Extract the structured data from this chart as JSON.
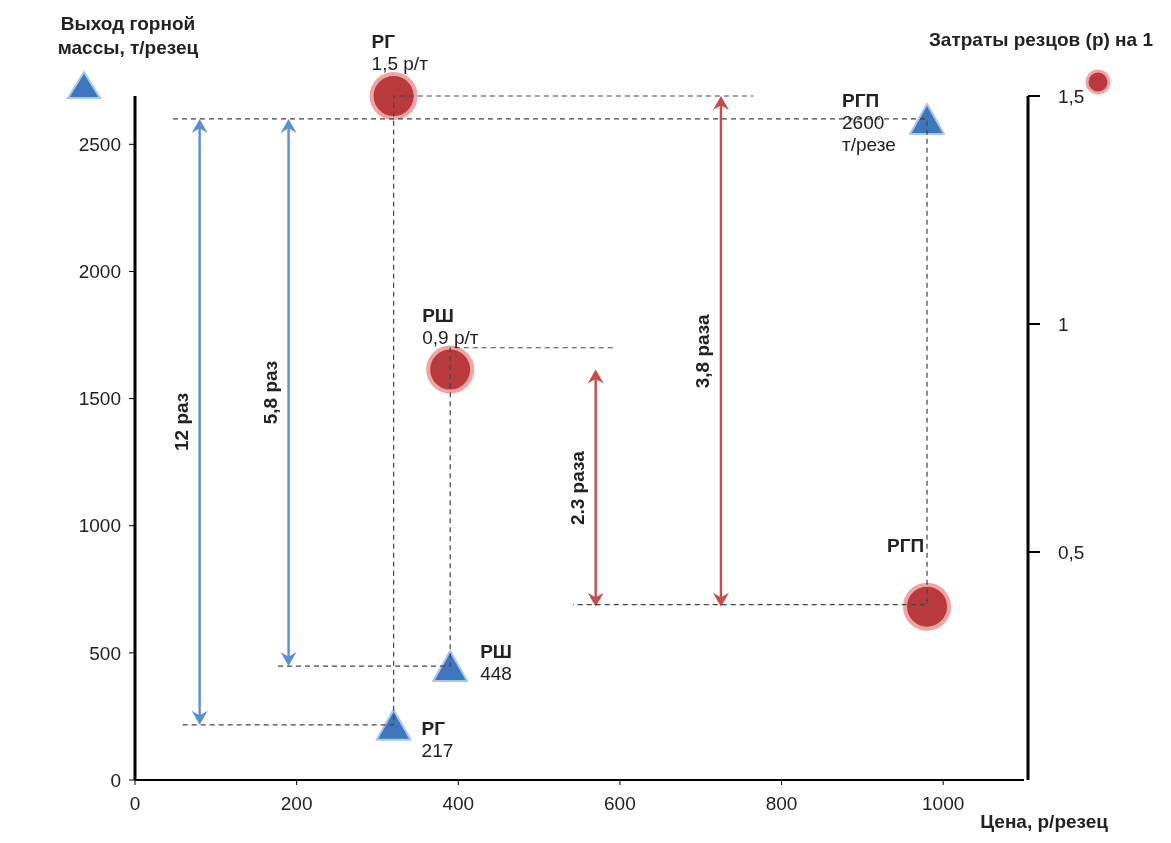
{
  "chart_data": {
    "type": "scatter",
    "xlabel": "Цена, р/резец",
    "ylabel": "Выход горной массы, т/резец",
    "y2label": "Затраты резцов (р) на 1",
    "xlim": [
      0,
      1100
    ],
    "xticks": [
      0,
      200,
      400,
      600,
      800,
      1000
    ],
    "ylim": [
      0,
      2690
    ],
    "yticks": [
      0,
      500,
      1000,
      1500,
      2000,
      2500
    ],
    "y2lim": [
      0,
      1.5
    ],
    "y2ticks": [
      {
        "value": 0.5,
        "label": "0,5"
      },
      {
        "value": 1,
        "label": "1"
      },
      {
        "value": 1.5,
        "label": "1,5"
      }
    ],
    "series": [
      {
        "type": "scatter",
        "marker": "triangle",
        "color": "#3f77bf",
        "x": [
          320,
          390,
          980
        ],
        "values": [
          217,
          448,
          2600
        ],
        "value_labels": [
          "РГ\n217",
          "РШ\n448",
          "РГП\n2600\nт/резе"
        ]
      },
      {
        "type": "scatter",
        "marker": "circle",
        "axis": "y2",
        "color": "#b83a3c",
        "x": [
          320,
          390,
          980
        ],
        "values": [
          1.5,
          0.9,
          0.38
        ],
        "value_labels": [
          "РГ\n1,5 р/т",
          "РШ\n0,9 р/т",
          "РГП"
        ]
      },
      {
        "type": "line",
        "line_style": "dashed",
        "marker": "none",
        "color": "#444444",
        "x": [
          59,
          320,
          320,
          765
        ],
        "values": [
          217,
          217,
          2690,
          2690
        ]
      },
      {
        "type": "line",
        "line_style": "dashed",
        "marker": "none",
        "color": "#444444",
        "x": [
          177,
          390,
          390,
          595
        ],
        "values": [
          448,
          448,
          1700,
          1700
        ]
      },
      {
        "type": "line",
        "line_style": "dashed",
        "marker": "none",
        "color": "#444444",
        "x": [
          47,
          980,
          980,
          542
        ],
        "values": [
          2600,
          2600,
          690,
          690
        ]
      }
    ],
    "annotations": [
      "12 раз",
      "5,8 раз",
      "2.3 раза",
      "3,8 раза"
    ],
    "grid": false
  }
}
